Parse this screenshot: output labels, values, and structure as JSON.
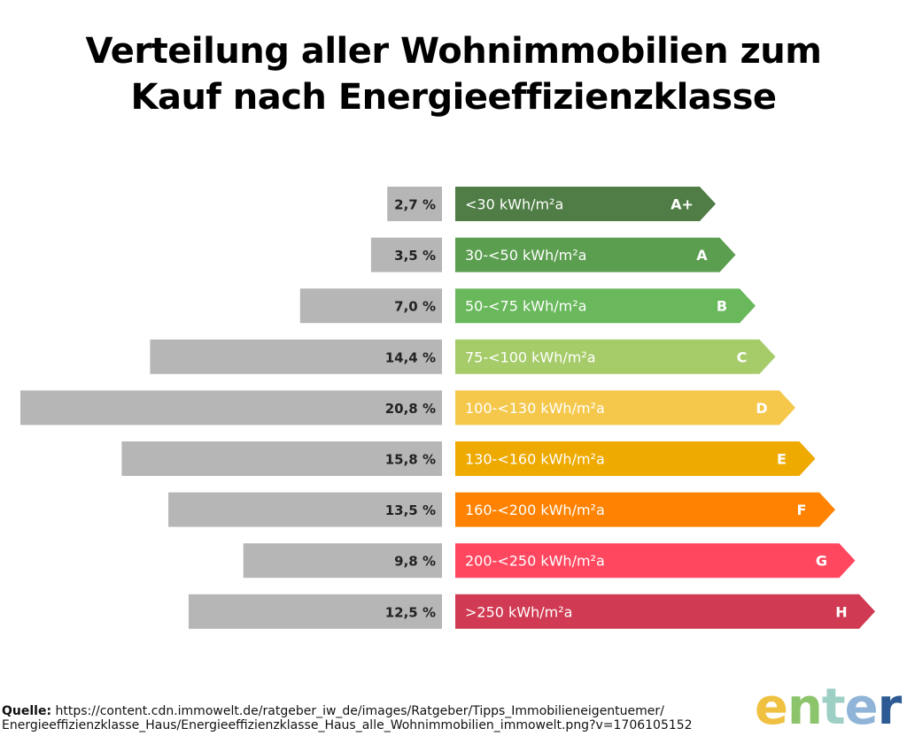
{
  "chart_data": {
    "type": "bar",
    "title": "Verteilung aller Wohnimmobilien zum Kauf nach Energieeffizienzklasse",
    "title_lines": [
      "Verteilung aller Wohnimmobilien zum",
      "Kauf nach Energieeffizienzklasse"
    ],
    "xlabel": "",
    "ylabel": "",
    "orientation": "horizontal",
    "grid": false,
    "legend": "none",
    "xlim": [
      0,
      20.8
    ],
    "categories": [
      "A+",
      "A",
      "B",
      "C",
      "D",
      "E",
      "F",
      "G",
      "H"
    ],
    "ranges": [
      "<30 kWh/m²a",
      "30-<50 kWh/m²a",
      "50-<75 kWh/m²a",
      "75-<100 kWh/m²a",
      "100-<130 kWh/m²a",
      "130-<160 kWh/m²a",
      "160-<200 kWh/m²a",
      "200-<250 kWh/m²a",
      ">250 kWh/m²a"
    ],
    "values": [
      2.7,
      3.5,
      7.0,
      14.4,
      20.8,
      15.8,
      13.5,
      9.8,
      12.5
    ],
    "value_labels": [
      "2,7 %",
      "3,5 %",
      "7,0 %",
      "14,4 %",
      "20,8 %",
      "15,8 %",
      "13,5 %",
      "9,8 %",
      "12,5 %"
    ],
    "unit": "%",
    "class_colors": [
      "#4f7d45",
      "#5c9e50",
      "#69b85c",
      "#a6cc6a",
      "#f5c84c",
      "#eeaa00",
      "#ff8200",
      "#ff4860",
      "#d03a52"
    ],
    "class_text_colors": [
      "#ffffff",
      "#ffffff",
      "#ffffff",
      "#ffffff",
      "#ffffff",
      "#ffffff",
      "#ffffff",
      "#ffffff",
      "#ffffff"
    ],
    "bar_color": "#b6b6b6"
  },
  "footer": {
    "source_label": "Quelle:",
    "source_text": " https://content.cdn.immowelt.de/ratgeber_iw_de/images/Ratgeber/Tipps_Immobilieneigentuemer/",
    "source_text_line2": "Energieeffizienzklasse_Haus/Energieeffizienzklasse_Haus_alle_Wohnimmobilien_immowelt.png?v=1706105152"
  },
  "logo": {
    "letters": [
      "e",
      "n",
      "t",
      "e",
      "r"
    ],
    "colors": [
      "#f0c040",
      "#8cc46c",
      "#9ecfc4",
      "#8fb4d8",
      "#2d5a93"
    ]
  }
}
